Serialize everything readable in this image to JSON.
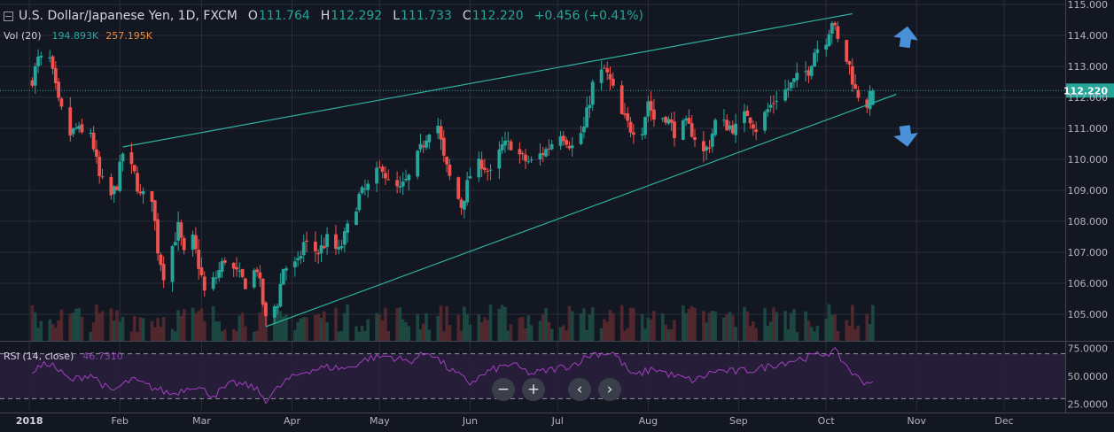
{
  "legend": {
    "symbol": "U.S. Dollar/Japanese Yen, 1D, FXCM",
    "o_label": "O",
    "o_value": "111.764",
    "h_label": "H",
    "h_value": "112.292",
    "l_label": "L",
    "l_value": "111.733",
    "c_label": "C",
    "c_value": "112.220",
    "change": "+0.456 (+0.41%)"
  },
  "volume_legend": {
    "label": "Vol (20)",
    "value1": "194.893K",
    "value2": "257.195K"
  },
  "rsi_legend": {
    "label": "RSI (14, close)",
    "value": "46.7310"
  },
  "price_badge": "112.220",
  "colors": {
    "background": "#131722",
    "up": "#26a69a",
    "down": "#ef5350",
    "trendline": "#2eb09e",
    "rsi_line": "#a33fc0",
    "arrow": "#4a90d9"
  },
  "nav_buttons": [
    {
      "name": "zoom-out-button",
      "glyph": "−"
    },
    {
      "name": "zoom-in-button",
      "glyph": "+"
    },
    {
      "name": "scroll-left-button",
      "glyph": "‹"
    },
    {
      "name": "scroll-right-button",
      "glyph": "›"
    }
  ],
  "chart_data": [
    {
      "type": "candlestick",
      "title": "U.S. Dollar/Japanese Yen, 1D, FXCM",
      "x_ticks": [
        "2018",
        "Feb",
        "Mar",
        "Apr",
        "May",
        "Jun",
        "Jul",
        "Aug",
        "Sep",
        "Oct",
        "Nov",
        "Dec"
      ],
      "y_ticks": [
        "115.000",
        "114.000",
        "113.000",
        "112.000",
        "111.000",
        "110.000",
        "109.000",
        "108.000",
        "107.000",
        "106.000",
        "105.000"
      ],
      "ylim": [
        104.5,
        115.0
      ],
      "last_price": 112.22,
      "grid": true,
      "close_path": [
        [
          "2018-01-02",
          112.6
        ],
        [
          "2018-01-04",
          113.2
        ],
        [
          "2018-01-08",
          113.2
        ],
        [
          "2018-01-11",
          111.8
        ],
        [
          "2018-01-15",
          110.8
        ],
        [
          "2018-01-17",
          111.0
        ],
        [
          "2018-01-19",
          110.8
        ],
        [
          "2018-01-22",
          110.9
        ],
        [
          "2018-01-25",
          109.4
        ],
        [
          "2018-01-29",
          108.8
        ],
        [
          "2018-01-31",
          109.2
        ],
        [
          "2018-02-02",
          110.2
        ],
        [
          "2018-02-06",
          109.5
        ],
        [
          "2018-02-08",
          108.8
        ],
        [
          "2018-02-12",
          108.8
        ],
        [
          "2018-02-14",
          107.1
        ],
        [
          "2018-02-16",
          106.3
        ],
        [
          "2018-02-21",
          107.8
        ],
        [
          "2018-02-23",
          106.9
        ],
        [
          "2018-02-26",
          107.4
        ],
        [
          "2018-03-01",
          106.2
        ],
        [
          "2018-03-02",
          105.7
        ],
        [
          "2018-03-06",
          106.2
        ],
        [
          "2018-03-09",
          106.8
        ],
        [
          "2018-03-12",
          106.4
        ],
        [
          "2018-03-16",
          106.0
        ],
        [
          "2018-03-20",
          106.5
        ],
        [
          "2018-03-23",
          104.8
        ],
        [
          "2018-03-27",
          105.4
        ],
        [
          "2018-03-29",
          106.5
        ],
        [
          "2018-04-03",
          106.6
        ],
        [
          "2018-04-05",
          107.3
        ],
        [
          "2018-04-10",
          107.0
        ],
        [
          "2018-04-13",
          107.4
        ],
        [
          "2018-04-17",
          107.0
        ],
        [
          "2018-04-19",
          107.5
        ],
        [
          "2018-04-24",
          108.8
        ],
        [
          "2018-04-27",
          109.1
        ],
        [
          "2018-05-02",
          109.8
        ],
        [
          "2018-05-04",
          109.2
        ],
        [
          "2018-05-08",
          109.0
        ],
        [
          "2018-05-11",
          109.4
        ],
        [
          "2018-05-15",
          110.3
        ],
        [
          "2018-05-18",
          111.0
        ],
        [
          "2018-05-21",
          111.1
        ],
        [
          "2018-05-23",
          110.0
        ],
        [
          "2018-05-25",
          109.4
        ],
        [
          "2018-05-29",
          108.5
        ],
        [
          "2018-06-01",
          109.5
        ],
        [
          "2018-06-05",
          109.9
        ],
        [
          "2018-06-08",
          109.5
        ],
        [
          "2018-06-12",
          110.4
        ],
        [
          "2018-06-15",
          110.5
        ],
        [
          "2018-06-19",
          110.0
        ],
        [
          "2018-06-22",
          109.9
        ],
        [
          "2018-06-27",
          110.3
        ],
        [
          "2018-07-02",
          110.9
        ],
        [
          "2018-07-06",
          110.4
        ],
        [
          "2018-07-10",
          111.0
        ],
        [
          "2018-07-13",
          112.4
        ],
        [
          "2018-07-17",
          112.9
        ],
        [
          "2018-07-19",
          112.5
        ],
        [
          "2018-07-23",
          111.4
        ],
        [
          "2018-07-26",
          111.0
        ],
        [
          "2018-07-30",
          111.0
        ],
        [
          "2018-08-01",
          111.9
        ],
        [
          "2018-08-03",
          111.3
        ],
        [
          "2018-08-07",
          111.4
        ],
        [
          "2018-08-10",
          110.9
        ],
        [
          "2018-08-14",
          111.1
        ],
        [
          "2018-08-16",
          110.9
        ],
        [
          "2018-08-20",
          110.2
        ],
        [
          "2018-08-22",
          110.5
        ],
        [
          "2018-08-24",
          111.2
        ],
        [
          "2018-08-28",
          111.1
        ],
        [
          "2018-08-31",
          111.0
        ],
        [
          "2018-09-04",
          111.5
        ],
        [
          "2018-09-07",
          111.0
        ],
        [
          "2018-09-11",
          111.6
        ],
        [
          "2018-09-14",
          112.0
        ],
        [
          "2018-09-18",
          112.3
        ],
        [
          "2018-09-21",
          112.6
        ],
        [
          "2018-09-25",
          112.9
        ],
        [
          "2018-09-27",
          113.5
        ],
        [
          "2018-10-01",
          113.9
        ],
        [
          "2018-10-03",
          114.5
        ],
        [
          "2018-10-05",
          113.8
        ],
        [
          "2018-10-09",
          113.0
        ],
        [
          "2018-10-11",
          112.2
        ],
        [
          "2018-10-15",
          111.8
        ],
        [
          "2018-10-17",
          112.2
        ]
      ],
      "trendlines": [
        {
          "name": "upper",
          "from": [
            "2018-02-02",
            110.4
          ],
          "to": [
            "2018-10-10",
            114.7
          ]
        },
        {
          "name": "lower",
          "from": [
            "2018-03-23",
            104.6
          ],
          "to": [
            "2018-10-25",
            112.1
          ]
        }
      ]
    },
    {
      "type": "line",
      "title": "RSI (14, close)",
      "y_ticks": [
        "75.0000",
        "50.0000",
        "25.0000"
      ],
      "ylim": [
        20,
        80
      ],
      "bands": [
        70,
        30
      ],
      "series": [
        {
          "name": "RSI (14, close)",
          "values": [
            [
              "2018-01-02",
              55
            ],
            [
              "2018-01-08",
              62
            ],
            [
              "2018-01-15",
              46
            ],
            [
              "2018-01-22",
              52
            ],
            [
              "2018-01-29",
              36
            ],
            [
              "2018-02-05",
              47
            ],
            [
              "2018-02-12",
              40
            ],
            [
              "2018-02-19",
              34
            ],
            [
              "2018-02-26",
              42
            ],
            [
              "2018-03-05",
              33
            ],
            [
              "2018-03-12",
              44
            ],
            [
              "2018-03-19",
              40
            ],
            [
              "2018-03-23",
              29
            ],
            [
              "2018-03-30",
              46
            ],
            [
              "2018-04-06",
              55
            ],
            [
              "2018-04-13",
              58
            ],
            [
              "2018-04-20",
              57
            ],
            [
              "2018-04-27",
              66
            ],
            [
              "2018-05-04",
              68
            ],
            [
              "2018-05-11",
              63
            ],
            [
              "2018-05-18",
              72
            ],
            [
              "2018-05-25",
              56
            ],
            [
              "2018-06-01",
              44
            ],
            [
              "2018-06-08",
              55
            ],
            [
              "2018-06-15",
              61
            ],
            [
              "2018-06-22",
              52
            ],
            [
              "2018-06-29",
              56
            ],
            [
              "2018-07-06",
              60
            ],
            [
              "2018-07-13",
              70
            ],
            [
              "2018-07-20",
              71
            ],
            [
              "2018-07-27",
              50
            ],
            [
              "2018-08-03",
              57
            ],
            [
              "2018-08-10",
              50
            ],
            [
              "2018-08-17",
              46
            ],
            [
              "2018-08-24",
              55
            ],
            [
              "2018-08-31",
              54
            ],
            [
              "2018-09-07",
              56
            ],
            [
              "2018-09-14",
              61
            ],
            [
              "2018-09-21",
              65
            ],
            [
              "2018-09-28",
              69
            ],
            [
              "2018-10-04",
              72
            ],
            [
              "2018-10-11",
              50
            ],
            [
              "2018-10-15",
              44
            ],
            [
              "2018-10-17",
              47
            ]
          ]
        }
      ]
    }
  ]
}
